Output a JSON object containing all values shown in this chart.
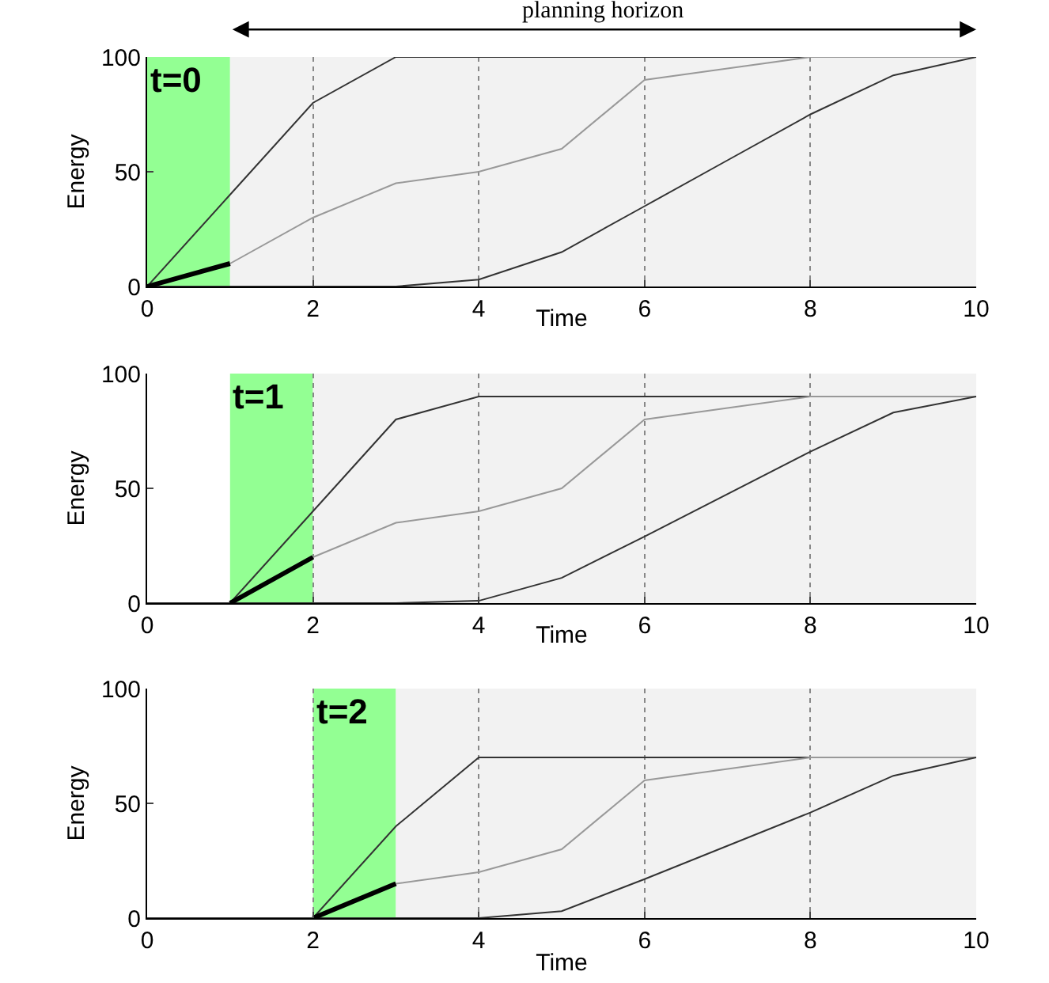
{
  "chart_data": [
    {
      "type": "line",
      "xlabel": "Time",
      "ylabel": "Energy",
      "xlim": [
        0,
        10
      ],
      "ylim": [
        0,
        100
      ],
      "xticks": [
        0,
        2,
        4,
        6,
        8,
        10
      ],
      "yticks": [
        0,
        50,
        100
      ],
      "grid": "x",
      "line_style": "solid",
      "marker": "none",
      "annotations": [
        "planning horizon"
      ],
      "bands": [
        {
          "axis": "x",
          "from": 0,
          "to": 1,
          "label": "t=0",
          "color": "#80ff80"
        },
        {
          "axis": "x",
          "from": 1,
          "to": 10,
          "color": "#f0f0f0"
        }
      ],
      "series": [
        {
          "color": "#333333",
          "x": [
            0,
            1,
            2,
            3,
            10
          ],
          "values": [
            0,
            40,
            80,
            100,
            100
          ]
        },
        {
          "color": "#999999",
          "x": [
            1,
            2,
            3,
            4,
            5,
            6,
            7,
            8,
            10
          ],
          "values": [
            10,
            30,
            45,
            50,
            60,
            90,
            95,
            100,
            100
          ]
        },
        {
          "color": "#333333",
          "x": [
            0,
            3,
            4,
            5,
            6,
            7,
            8,
            9,
            10
          ],
          "values": [
            0,
            0,
            3,
            15,
            35,
            55,
            75,
            92,
            100
          ]
        },
        {
          "color": "#000000",
          "x": [
            0,
            1
          ],
          "values": [
            0,
            10
          ]
        }
      ]
    },
    {
      "type": "line",
      "xlabel": "Time",
      "ylabel": "Energy",
      "xlim": [
        0,
        10
      ],
      "ylim": [
        0,
        100
      ],
      "xticks": [
        0,
        2,
        4,
        6,
        8,
        10
      ],
      "yticks": [
        0,
        50,
        100
      ],
      "grid": "x",
      "line_style": "solid",
      "marker": "none",
      "bands": [
        {
          "axis": "x",
          "from": 1,
          "to": 2,
          "label": "t=1",
          "color": "#80ff80"
        },
        {
          "axis": "x",
          "from": 2,
          "to": 10,
          "color": "#f0f0f0"
        }
      ],
      "series": [
        {
          "color": "#333333",
          "x": [
            1,
            2,
            3,
            4,
            10
          ],
          "values": [
            0,
            40,
            80,
            90,
            90
          ]
        },
        {
          "color": "#999999",
          "x": [
            2,
            3,
            4,
            5,
            6,
            8,
            10
          ],
          "values": [
            20,
            35,
            40,
            50,
            80,
            90,
            90
          ]
        },
        {
          "color": "#333333",
          "x": [
            0,
            3,
            4,
            5,
            6,
            8,
            9,
            10
          ],
          "values": [
            0,
            0,
            1,
            11,
            29,
            66,
            83,
            90
          ]
        },
        {
          "color": "#000000",
          "x": [
            1,
            2
          ],
          "values": [
            0,
            20
          ]
        }
      ]
    },
    {
      "type": "line",
      "xlabel": "Time",
      "ylabel": "Energy",
      "xlim": [
        0,
        10
      ],
      "ylim": [
        0,
        100
      ],
      "xticks": [
        0,
        2,
        4,
        6,
        8,
        10
      ],
      "yticks": [
        0,
        50,
        100
      ],
      "grid": "x",
      "line_style": "solid",
      "marker": "none",
      "bands": [
        {
          "axis": "x",
          "from": 2,
          "to": 3,
          "label": "t=2",
          "color": "#80ff80"
        },
        {
          "axis": "x",
          "from": 3,
          "to": 10,
          "color": "#f0f0f0"
        }
      ],
      "series": [
        {
          "color": "#333333",
          "x": [
            2,
            3,
            4,
            10
          ],
          "values": [
            0,
            40,
            70,
            70
          ]
        },
        {
          "color": "#999999",
          "x": [
            3,
            4,
            5,
            6,
            8,
            10
          ],
          "values": [
            15,
            20,
            30,
            60,
            70,
            70
          ]
        },
        {
          "color": "#333333",
          "x": [
            0,
            4,
            5,
            6,
            8,
            9,
            10
          ],
          "values": [
            0,
            0,
            3,
            17,
            46,
            62,
            70
          ]
        },
        {
          "color": "#000000",
          "x": [
            2,
            3
          ],
          "values": [
            0,
            15
          ]
        }
      ]
    }
  ]
}
